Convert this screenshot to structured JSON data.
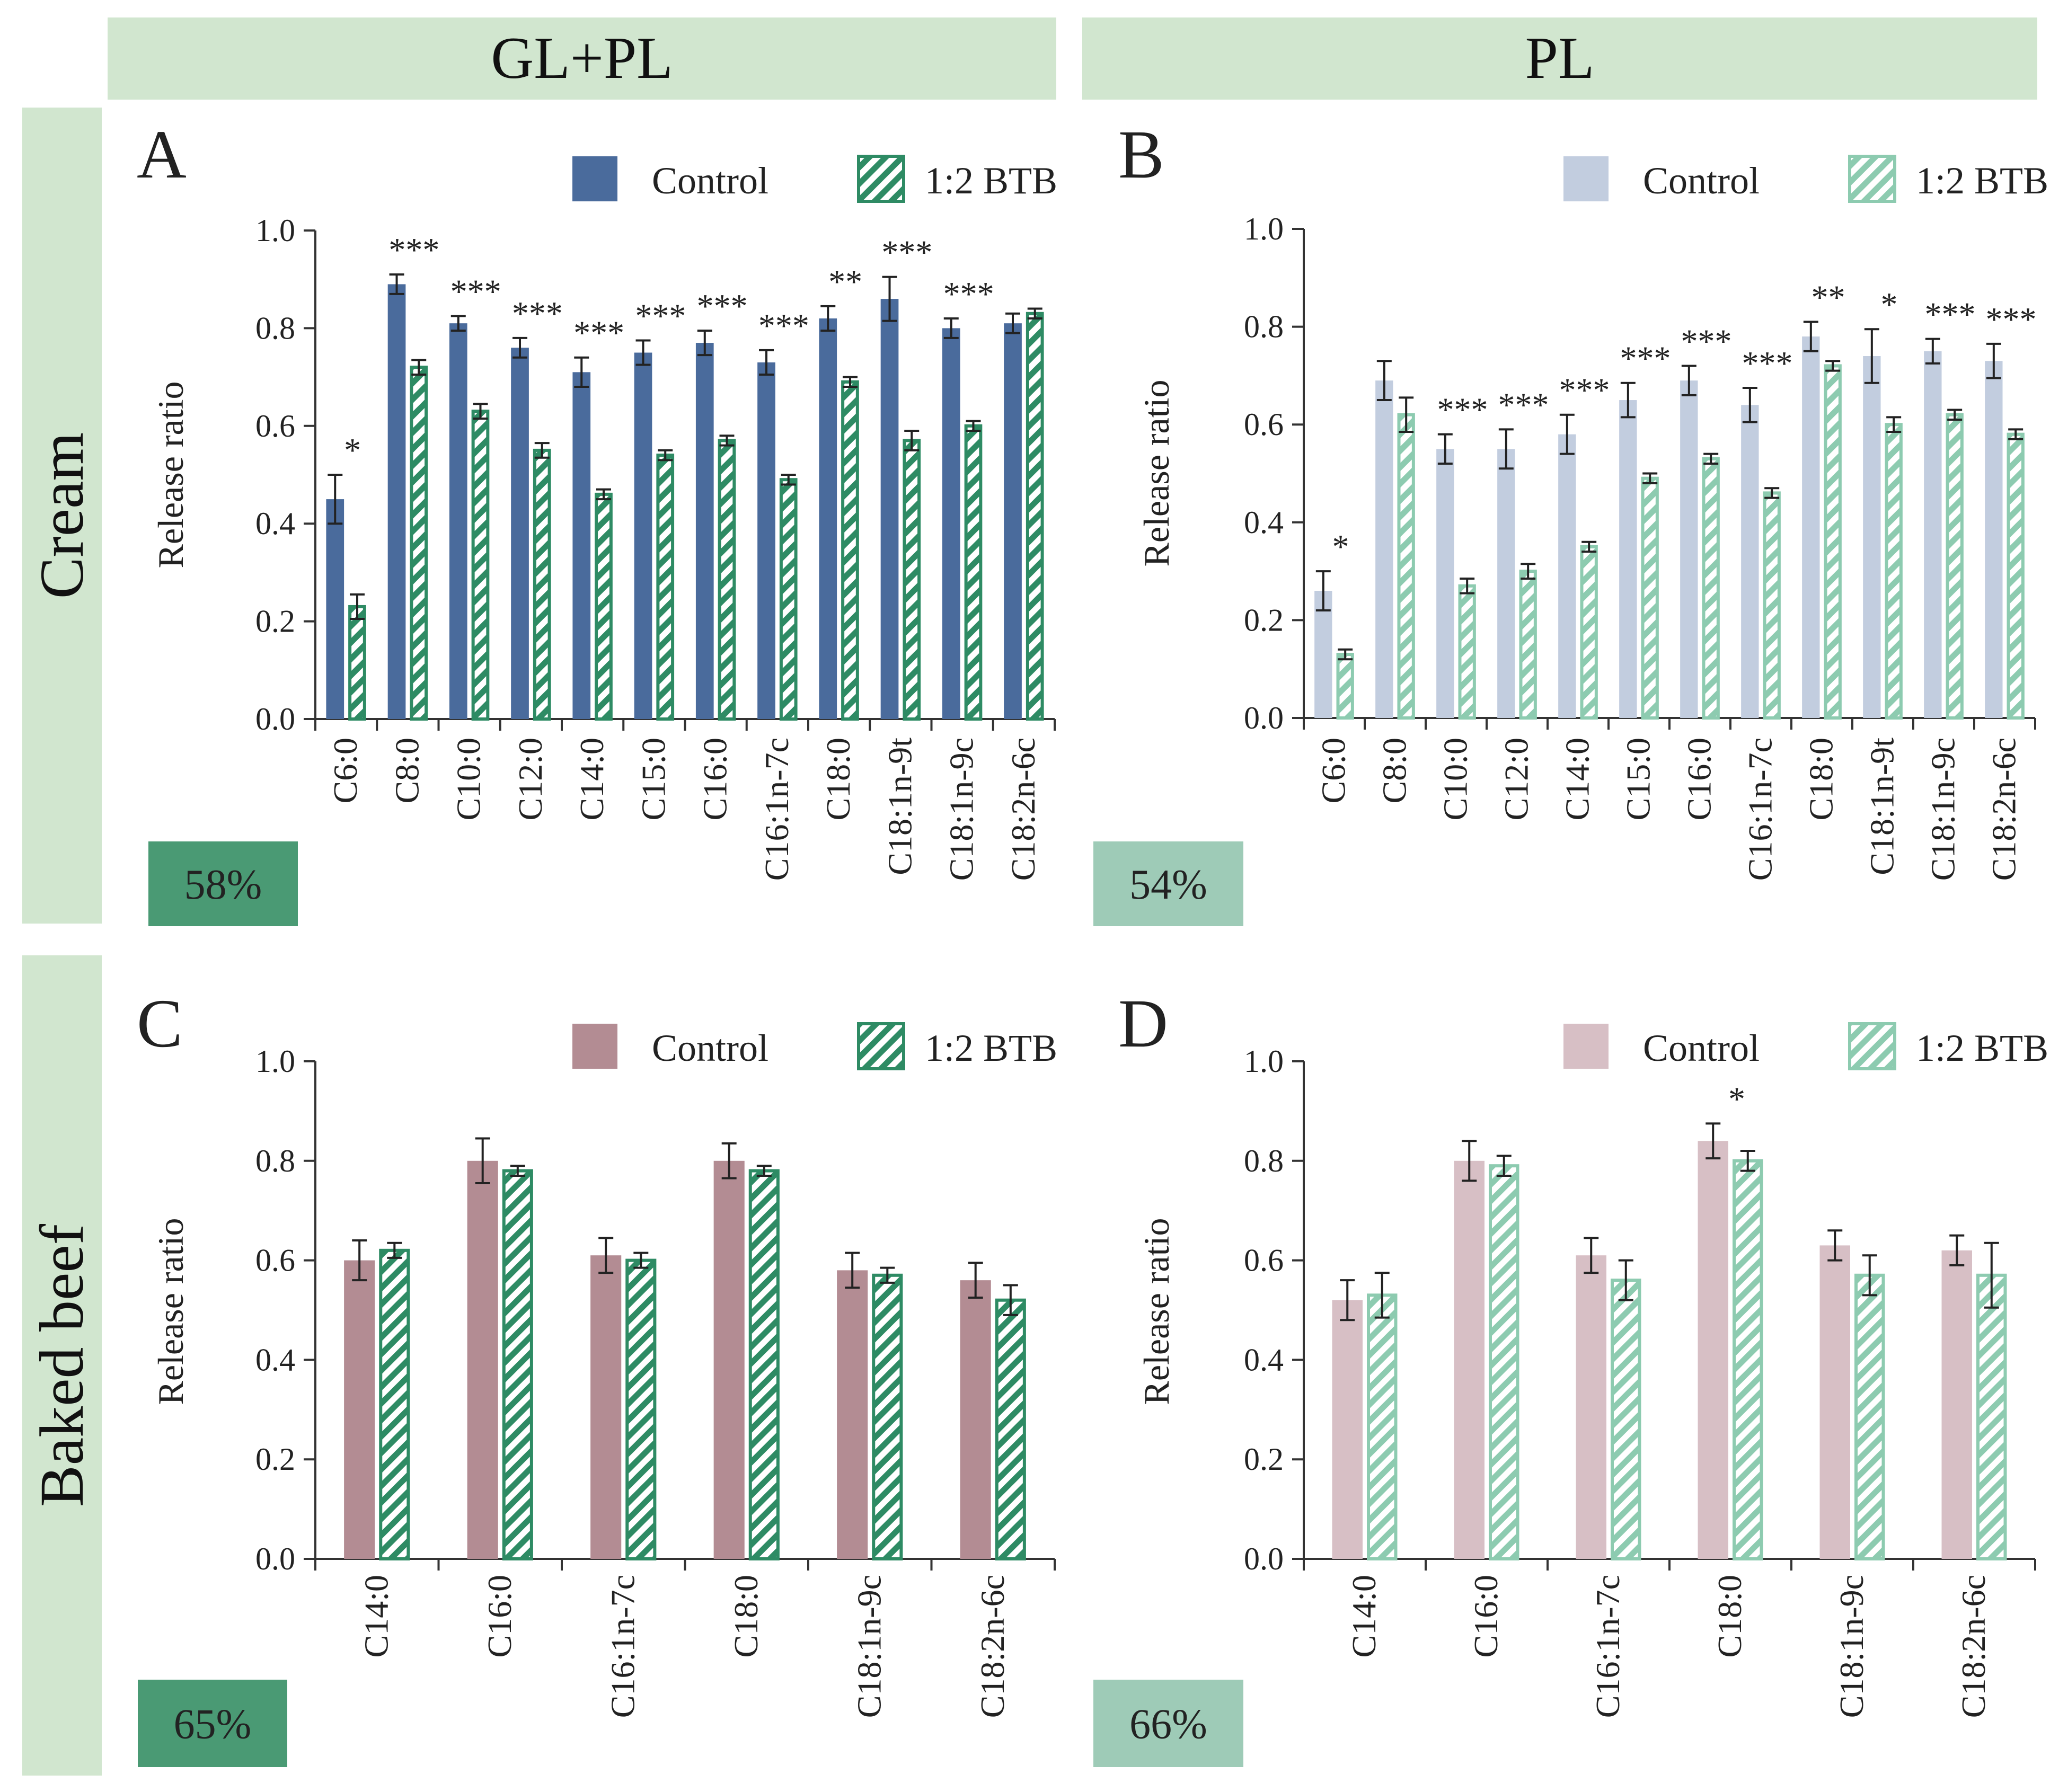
{
  "headers": {
    "columns": [
      "GL+PL",
      "PL"
    ],
    "rows": [
      "Cream",
      "Baked beef"
    ]
  },
  "chart_data": [
    {
      "type": "bar",
      "panel": "A",
      "badge": "58%",
      "ylabel": "Release ratio",
      "ylim": [
        0,
        1
      ],
      "yticks": [
        "0.0",
        "0.2",
        "0.4",
        "0.6",
        "0.8",
        "1.0"
      ],
      "legend": [
        "Control",
        "1:2 BTB"
      ],
      "colors": {
        "control": "#4a6b9c",
        "btb": "#2e8b64",
        "badge": "#4a9a74"
      },
      "categories": [
        "C6:0",
        "C8:0",
        "C10:0",
        "C12:0",
        "C14:0",
        "C15:0",
        "C16:0",
        "C16:1n-7c",
        "C18:0",
        "C18:1n-9t",
        "C18:1n-9c",
        "C18:2n-6c"
      ],
      "series": [
        {
          "name": "Control",
          "values": [
            0.45,
            0.89,
            0.81,
            0.76,
            0.71,
            0.75,
            0.77,
            0.73,
            0.82,
            0.86,
            0.8,
            0.81
          ],
          "errors": [
            0.05,
            0.02,
            0.015,
            0.02,
            0.03,
            0.025,
            0.025,
            0.025,
            0.025,
            0.045,
            0.02,
            0.02
          ]
        },
        {
          "name": "1:2 BTB",
          "values": [
            0.23,
            0.72,
            0.63,
            0.55,
            0.46,
            0.54,
            0.57,
            0.49,
            0.69,
            0.57,
            0.6,
            0.83
          ],
          "errors": [
            0.025,
            0.015,
            0.015,
            0.015,
            0.01,
            0.01,
            0.01,
            0.01,
            0.01,
            0.02,
            0.01,
            0.01
          ]
        }
      ],
      "annotations": [
        "*",
        "***",
        "***",
        "***",
        "***",
        "***",
        "***",
        "***",
        "**",
        "***",
        "***",
        ""
      ]
    },
    {
      "type": "bar",
      "panel": "B",
      "badge": "54%",
      "ylabel": "Release ratio",
      "ylim": [
        0,
        1
      ],
      "yticks": [
        "0.0",
        "0.2",
        "0.4",
        "0.6",
        "0.8",
        "1.0"
      ],
      "legend": [
        "Control",
        "1:2 BTB"
      ],
      "colors": {
        "control": "#c2cddf",
        "btb": "#8dcbb0",
        "badge": "#9ecbb7"
      },
      "categories": [
        "C6:0",
        "C8:0",
        "C10:0",
        "C12:0",
        "C14:0",
        "C15:0",
        "C16:0",
        "C16:1n-7c",
        "C18:0",
        "C18:1n-9t",
        "C18:1n-9c",
        "C18:2n-6c"
      ],
      "series": [
        {
          "name": "Control",
          "values": [
            0.26,
            0.69,
            0.55,
            0.55,
            0.58,
            0.65,
            0.69,
            0.64,
            0.78,
            0.74,
            0.75,
            0.73
          ],
          "errors": [
            0.04,
            0.04,
            0.03,
            0.04,
            0.04,
            0.035,
            0.03,
            0.035,
            0.03,
            0.055,
            0.025,
            0.035
          ]
        },
        {
          "name": "1:2 BTB",
          "values": [
            0.13,
            0.62,
            0.27,
            0.3,
            0.35,
            0.49,
            0.53,
            0.46,
            0.72,
            0.6,
            0.62,
            0.58
          ],
          "errors": [
            0.01,
            0.035,
            0.015,
            0.015,
            0.01,
            0.01,
            0.01,
            0.01,
            0.01,
            0.015,
            0.01,
            0.01
          ]
        }
      ],
      "annotations": [
        "*",
        "",
        "***",
        "***",
        "***",
        "***",
        "***",
        "***",
        "**",
        "*",
        "***",
        "***"
      ]
    },
    {
      "type": "bar",
      "panel": "C",
      "badge": "65%",
      "ylabel": "Release ratio",
      "ylim": [
        0,
        1
      ],
      "yticks": [
        "0.0",
        "0.2",
        "0.4",
        "0.6",
        "0.8",
        "1.0"
      ],
      "legend": [
        "Control",
        "1:2 BTB"
      ],
      "colors": {
        "control": "#b38c93",
        "btb": "#2e8b64",
        "badge": "#4a9a74"
      },
      "categories": [
        "C14:0",
        "C16:0",
        "C16:1n-7c",
        "C18:0",
        "C18:1n-9c",
        "C18:2n-6c"
      ],
      "series": [
        {
          "name": "Control",
          "values": [
            0.6,
            0.8,
            0.61,
            0.8,
            0.58,
            0.56
          ],
          "errors": [
            0.04,
            0.045,
            0.035,
            0.035,
            0.035,
            0.035
          ]
        },
        {
          "name": "1:2 BTB",
          "values": [
            0.62,
            0.78,
            0.6,
            0.78,
            0.57,
            0.52
          ],
          "errors": [
            0.015,
            0.01,
            0.015,
            0.01,
            0.015,
            0.03
          ]
        }
      ],
      "annotations": [
        "",
        "",
        "",
        "",
        "",
        ""
      ]
    },
    {
      "type": "bar",
      "panel": "D",
      "badge": "66%",
      "ylabel": "Release ratio",
      "ylim": [
        0,
        1
      ],
      "yticks": [
        "0.0",
        "0.2",
        "0.4",
        "0.6",
        "0.8",
        "1.0"
      ],
      "legend": [
        "Control",
        "1:2 BTB"
      ],
      "colors": {
        "control": "#d7bfc5",
        "btb": "#8dcbb0",
        "badge": "#9ecbb7"
      },
      "categories": [
        "C14:0",
        "C16:0",
        "C16:1n-7c",
        "C18:0",
        "C18:1n-9c",
        "C18:2n-6c"
      ],
      "series": [
        {
          "name": "Control",
          "values": [
            0.52,
            0.8,
            0.61,
            0.84,
            0.63,
            0.62
          ],
          "errors": [
            0.04,
            0.04,
            0.035,
            0.035,
            0.03,
            0.03
          ]
        },
        {
          "name": "1:2 BTB",
          "values": [
            0.53,
            0.79,
            0.56,
            0.8,
            0.57,
            0.57
          ],
          "errors": [
            0.045,
            0.02,
            0.04,
            0.02,
            0.04,
            0.065
          ]
        }
      ],
      "annotations": [
        "",
        "",
        "",
        "*",
        "",
        ""
      ]
    }
  ]
}
